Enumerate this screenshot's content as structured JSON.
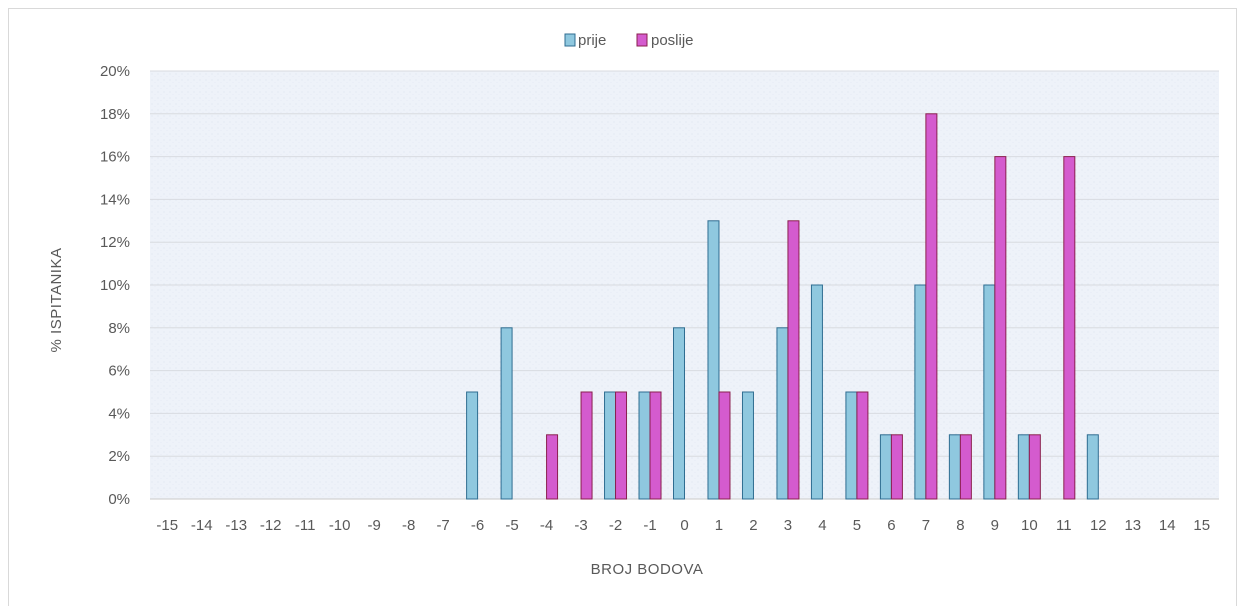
{
  "chart_data": {
    "type": "bar",
    "title": "",
    "xlabel": "BROJ BODOVA",
    "ylabel": "% ISPITANIKA",
    "ylim": [
      0,
      20
    ],
    "y_ticks": [
      "0%",
      "2%",
      "4%",
      "6%",
      "8%",
      "10%",
      "12%",
      "14%",
      "16%",
      "18%",
      "20%"
    ],
    "grid": true,
    "legend_position": "top",
    "categories": [
      "-15",
      "-14",
      "-13",
      "-12",
      "-11",
      "-10",
      "-9",
      "-8",
      "-7",
      "-6",
      "-5",
      "-4",
      "-3",
      "-2",
      "-1",
      "0",
      "1",
      "2",
      "3",
      "4",
      "5",
      "6",
      "7",
      "8",
      "9",
      "10",
      "11",
      "12",
      "13",
      "14",
      "15"
    ],
    "series": [
      {
        "name": "prije",
        "color": "#8fc8df",
        "values": [
          0,
          0,
          0,
          0,
          0,
          0,
          0,
          0,
          0,
          5,
          8,
          0,
          0,
          5,
          5,
          8,
          13,
          5,
          8,
          10,
          5,
          3,
          10,
          3,
          10,
          3,
          0,
          3,
          0,
          0,
          0
        ]
      },
      {
        "name": "poslije",
        "color": "#d45bce",
        "values": [
          0,
          0,
          0,
          0,
          0,
          0,
          0,
          0,
          0,
          0,
          0,
          3,
          5,
          5,
          5,
          0,
          5,
          0,
          13,
          0,
          5,
          3,
          18,
          3,
          16,
          3,
          16,
          0,
          0,
          0,
          0
        ]
      }
    ]
  }
}
